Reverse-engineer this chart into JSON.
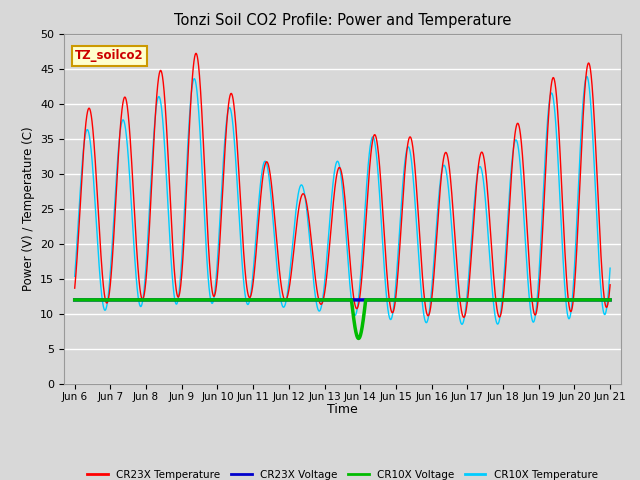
{
  "title": "Tonzi Soil CO2 Profile: Power and Temperature",
  "xlabel": "Time",
  "ylabel": "Power (V) / Temperature (C)",
  "ylim": [
    0,
    50
  ],
  "yticks": [
    0,
    5,
    10,
    15,
    20,
    25,
    30,
    35,
    40,
    45,
    50
  ],
  "xlim_start": 5.7,
  "xlim_end": 21.3,
  "xtick_labels": [
    "Jun 6",
    "Jun 7",
    "Jun 8",
    "Jun 9",
    "Jun 10",
    "Jun 11",
    "Jun 12",
    "Jun 13",
    "Jun 14",
    "Jun 15",
    "Jun 16",
    "Jun 17",
    "Jun 18",
    "Jun 19",
    "Jun 20",
    "Jun 21"
  ],
  "xtick_positions": [
    6,
    7,
    8,
    9,
    10,
    11,
    12,
    13,
    14,
    15,
    16,
    17,
    18,
    19,
    20,
    21
  ],
  "cr23x_temp_color": "#FF0000",
  "cr23x_volt_color": "#0000CC",
  "cr10x_volt_color": "#00BB00",
  "cr10x_temp_color": "#00CCFF",
  "voltage_level": 12.0,
  "background_color": "#D8D8D8",
  "plot_bg_color": "#D8D8D8",
  "grid_color": "#FFFFFF",
  "annotation_text": "TZ_soilco2",
  "annotation_bg": "#FFFFCC",
  "annotation_border": "#CC9900",
  "legend_labels": [
    "CR23X Temperature",
    "CR23X Voltage",
    "CR10X Voltage",
    "CR10X Temperature"
  ],
  "legend_colors": [
    "#FF0000",
    "#0000CC",
    "#00BB00",
    "#00CCFF"
  ],
  "linewidth": 1.0,
  "volt_linewidth": 2.5,
  "figwidth": 6.4,
  "figheight": 4.8,
  "dpi": 100
}
